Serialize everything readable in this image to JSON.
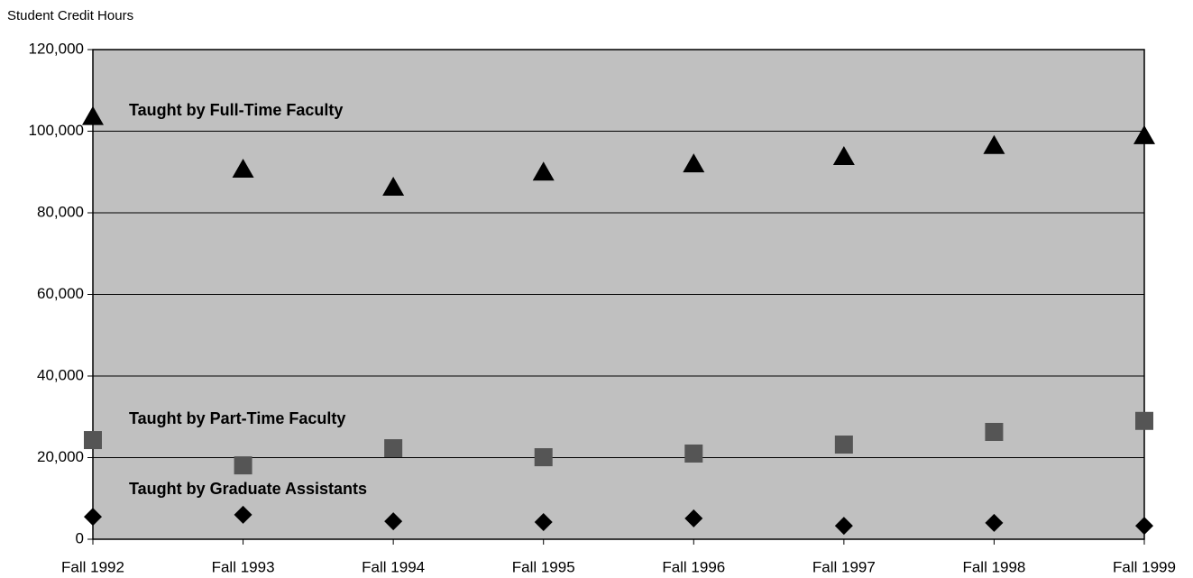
{
  "chart_data": {
    "type": "line",
    "y_axis_label": "Student Credit Hours",
    "categories": [
      "Fall 1992",
      "Fall 1993",
      "Fall 1994",
      "Fall 1995",
      "Fall 1996",
      "Fall 1997",
      "Fall 1998",
      "Fall 1999"
    ],
    "series": [
      {
        "name": "Taught by Full-Time Faculty",
        "color": "#000000",
        "marker": "triangle",
        "values": [
          103500,
          90600,
          86200,
          89900,
          91900,
          93700,
          96400,
          98800
        ]
      },
      {
        "name": "Taught by Part-Time Faculty",
        "color": "#555555",
        "marker": "square",
        "values": [
          24300,
          18100,
          22300,
          20100,
          21000,
          23200,
          26300,
          29000
        ]
      },
      {
        "name": "Taught by Graduate Assistants",
        "color": "#000000",
        "marker": "diamond",
        "values": [
          5500,
          6000,
          4400,
          4200,
          5100,
          3300,
          4000,
          3300
        ]
      }
    ],
    "ylim": [
      0,
      120000
    ],
    "yticks": [
      0,
      {
        "value": 20000,
        "label": "20,000"
      },
      {
        "value": 40000,
        "label": "40,000"
      },
      {
        "value": 60000,
        "label": "60,000"
      },
      {
        "value": 80000,
        "label": "80,000"
      },
      {
        "value": 100000,
        "label": "100,000"
      },
      {
        "value": 120000,
        "label": "120,000"
      }
    ],
    "grid": true,
    "plot_background": "#c0c0c0"
  }
}
